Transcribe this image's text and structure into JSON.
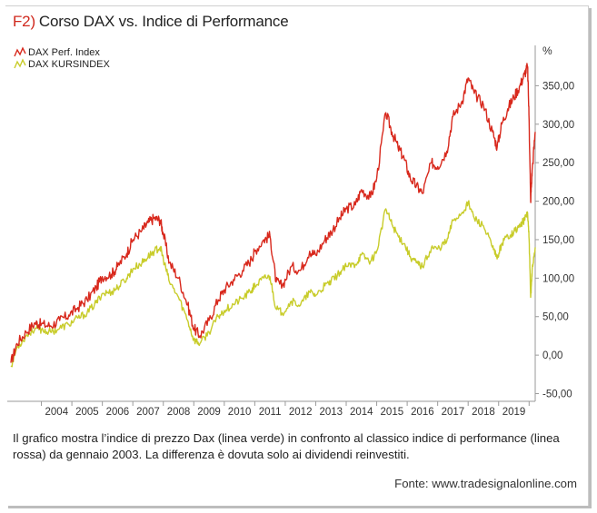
{
  "figure": {
    "prefix": "F2)",
    "title": "Corso DAX vs. Indice di Performance",
    "caption": "Il grafico mostra l’indice di prezzo Dax (linea verde) in confronto al classico indice di performance (linea rossa) da gennaio 2003. La differenza è dovuta solo ai dividendi reinvestiti.",
    "source": "Fonte: www.tradesignalonline.com"
  },
  "chart_data": {
    "type": "line",
    "ylabel": "%",
    "ylim": [
      -60,
      400
    ],
    "yticks": [
      -50,
      0,
      50,
      100,
      150,
      200,
      250,
      300,
      350
    ],
    "ytick_labels": [
      "-50,00",
      "0,00",
      "50,00",
      "100,00",
      "150,00",
      "200,00",
      "250,00",
      "300,00",
      "350,00"
    ],
    "xlim": [
      2003.0,
      2020.2
    ],
    "xtick_labels": [
      "2004",
      "2005",
      "2006",
      "2007",
      "2008",
      "2009",
      "2010",
      "2011",
      "2012",
      "2013",
      "2014",
      "2015",
      "2016",
      "2017",
      "2018",
      "2019"
    ],
    "legend_position": "top-left",
    "grid": false,
    "colors": {
      "perf": "#d8281c",
      "kurs": "#c8cc2a",
      "axis": "#9a9a9a"
    },
    "series": [
      {
        "name": "DAX Perf. Index",
        "color": "#d8281c",
        "x": [
          2003.0,
          2003.2,
          2003.5,
          2003.8,
          2004.0,
          2004.3,
          2004.6,
          2004.9,
          2005.2,
          2005.5,
          2005.8,
          2006.0,
          2006.3,
          2006.5,
          2006.8,
          2007.0,
          2007.3,
          2007.5,
          2007.7,
          2007.9,
          2008.0,
          2008.2,
          2008.5,
          2008.8,
          2009.0,
          2009.2,
          2009.5,
          2009.8,
          2010.0,
          2010.3,
          2010.6,
          2010.9,
          2011.0,
          2011.3,
          2011.5,
          2011.7,
          2011.9,
          2012.2,
          2012.5,
          2012.8,
          2013.0,
          2013.3,
          2013.5,
          2013.8,
          2014.0,
          2014.3,
          2014.5,
          2014.8,
          2015.0,
          2015.3,
          2015.5,
          2015.7,
          2015.9,
          2016.1,
          2016.3,
          2016.5,
          2016.8,
          2017.0,
          2017.3,
          2017.5,
          2017.8,
          2018.0,
          2018.2,
          2018.5,
          2018.8,
          2018.95,
          2019.1,
          2019.3,
          2019.5,
          2019.7,
          2019.85,
          2019.95,
          2020.0,
          2020.05,
          2020.1,
          2020.2
        ],
        "values": [
          -10,
          15,
          30,
          42,
          40,
          38,
          45,
          52,
          62,
          72,
          88,
          102,
          105,
          115,
          132,
          150,
          162,
          172,
          178,
          175,
          158,
          120,
          100,
          65,
          35,
          25,
          45,
          72,
          85,
          98,
          110,
          125,
          135,
          150,
          155,
          95,
          90,
          115,
          110,
          135,
          130,
          150,
          160,
          178,
          190,
          195,
          215,
          205,
          230,
          315,
          290,
          270,
          255,
          230,
          220,
          210,
          250,
          245,
          265,
          310,
          330,
          360,
          340,
          325,
          290,
          270,
          300,
          320,
          335,
          350,
          365,
          375,
          305,
          200,
          240,
          290
        ]
      },
      {
        "name": "DAX KURSINDEX",
        "color": "#c8cc2a",
        "x": [
          2003.0,
          2003.2,
          2003.5,
          2003.8,
          2004.0,
          2004.3,
          2004.6,
          2004.9,
          2005.2,
          2005.5,
          2005.8,
          2006.0,
          2006.3,
          2006.5,
          2006.8,
          2007.0,
          2007.3,
          2007.5,
          2007.7,
          2007.9,
          2008.0,
          2008.2,
          2008.5,
          2008.8,
          2009.0,
          2009.2,
          2009.5,
          2009.8,
          2010.0,
          2010.3,
          2010.6,
          2010.9,
          2011.0,
          2011.3,
          2011.5,
          2011.7,
          2011.9,
          2012.2,
          2012.5,
          2012.8,
          2013.0,
          2013.3,
          2013.5,
          2013.8,
          2014.0,
          2014.3,
          2014.5,
          2014.8,
          2015.0,
          2015.3,
          2015.5,
          2015.7,
          2015.9,
          2016.1,
          2016.3,
          2016.5,
          2016.8,
          2017.0,
          2017.3,
          2017.5,
          2017.8,
          2018.0,
          2018.2,
          2018.5,
          2018.8,
          2018.95,
          2019.1,
          2019.3,
          2019.5,
          2019.7,
          2019.85,
          2019.95,
          2020.0,
          2020.05,
          2020.1,
          2020.2
        ],
        "values": [
          -15,
          10,
          25,
          35,
          33,
          30,
          35,
          40,
          48,
          55,
          68,
          80,
          82,
          88,
          100,
          112,
          120,
          128,
          135,
          140,
          125,
          95,
          75,
          45,
          20,
          15,
          30,
          50,
          58,
          66,
          74,
          84,
          90,
          100,
          102,
          60,
          55,
          70,
          65,
          82,
          78,
          90,
          95,
          108,
          115,
          118,
          130,
          122,
          135,
          190,
          170,
          155,
          145,
          128,
          120,
          115,
          140,
          138,
          148,
          175,
          185,
          198,
          178,
          168,
          140,
          125,
          145,
          155,
          160,
          168,
          176,
          185,
          150,
          75,
          110,
          140
        ]
      }
    ]
  }
}
